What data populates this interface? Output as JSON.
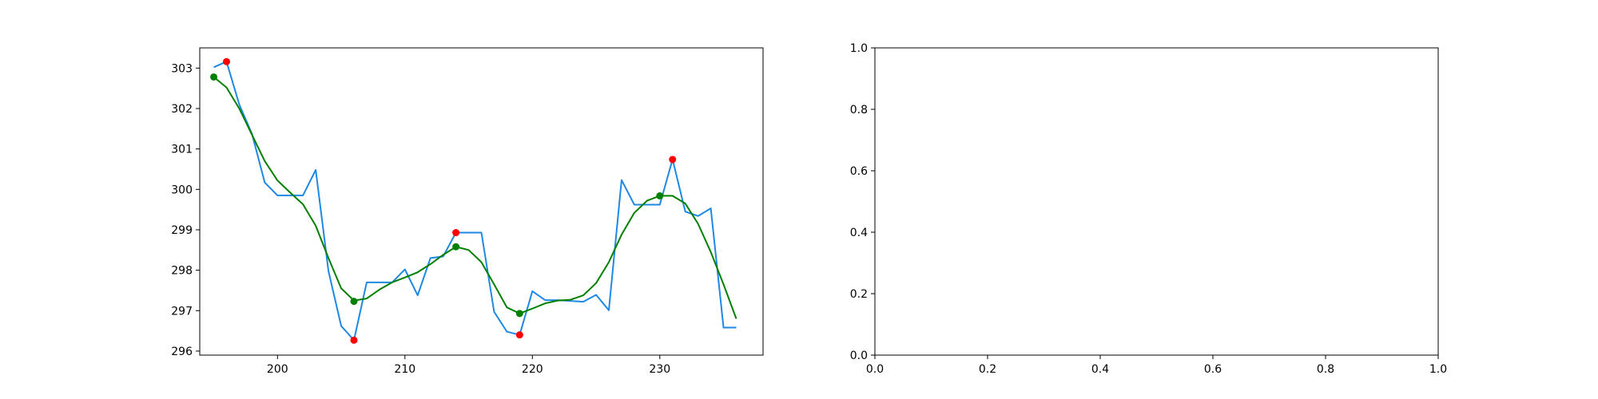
{
  "chart_data": [
    {
      "type": "line",
      "xlim": [
        193.9,
        238.1
      ],
      "ylim": [
        295.9,
        303.5
      ],
      "x_ticks": [
        200,
        210,
        220,
        230
      ],
      "y_ticks": [
        296,
        297,
        298,
        299,
        300,
        301,
        302,
        303
      ],
      "grid": false,
      "series": [
        {
          "name": "",
          "color": "#1e88e5",
          "marker": "none",
          "x": [
            195,
            196,
            197,
            198,
            199,
            200,
            201,
            202,
            203,
            204,
            205,
            206,
            207,
            208,
            209,
            210,
            211,
            212,
            213,
            214,
            215,
            216,
            217,
            218,
            219,
            220,
            221,
            222,
            223,
            224,
            225,
            226,
            227,
            228,
            229,
            230,
            231,
            232,
            233,
            234,
            235,
            236
          ],
          "y": [
            303.02,
            303.16,
            302.1,
            301.37,
            300.17,
            299.85,
            299.85,
            299.85,
            300.48,
            297.98,
            296.62,
            296.27,
            297.7,
            297.7,
            297.7,
            298.02,
            297.38,
            298.3,
            298.34,
            298.93,
            298.93,
            298.93,
            296.97,
            296.48,
            296.4,
            297.48,
            297.26,
            297.26,
            297.24,
            297.22,
            297.39,
            297.01,
            300.23,
            299.62,
            299.62,
            299.62,
            300.74,
            299.45,
            299.34,
            299.53,
            296.58,
            296.58
          ]
        },
        {
          "name": "",
          "color": "#008000",
          "marker": "none",
          "x": [
            195,
            196,
            197,
            198,
            199,
            200,
            201,
            202,
            203,
            204,
            205,
            206,
            207,
            208,
            209,
            210,
            211,
            212,
            213,
            214,
            215,
            216,
            217,
            218,
            219,
            220,
            221,
            222,
            223,
            224,
            225,
            226,
            227,
            228,
            229,
            230,
            231,
            232,
            233,
            234,
            235,
            236
          ],
          "y": [
            302.78,
            302.52,
            302.0,
            301.35,
            300.7,
            300.22,
            299.92,
            299.63,
            299.1,
            298.3,
            297.55,
            297.25,
            297.3,
            297.52,
            297.7,
            297.82,
            297.95,
            298.15,
            298.38,
            298.58,
            298.5,
            298.2,
            297.65,
            297.08,
            296.93,
            297.05,
            297.18,
            297.25,
            297.27,
            297.38,
            297.68,
            298.2,
            298.88,
            299.42,
            299.72,
            299.84,
            299.84,
            299.65,
            299.15,
            298.45,
            297.65,
            296.8
          ]
        },
        {
          "name": "",
          "color": "#ff0000",
          "marker": "circle",
          "line": false,
          "x": [
            196,
            206,
            214,
            219,
            231
          ],
          "y": [
            303.16,
            296.27,
            298.93,
            296.4,
            300.74
          ]
        },
        {
          "name": "",
          "color": "#008000",
          "marker": "circle",
          "line": false,
          "x": [
            195,
            206,
            214,
            219,
            230
          ],
          "y": [
            302.78,
            297.23,
            298.58,
            296.93,
            299.84
          ]
        }
      ]
    },
    {
      "type": "line",
      "xlim": [
        0.0,
        1.0
      ],
      "ylim": [
        0.0,
        1.0
      ],
      "x_ticks": [
        0.0,
        0.2,
        0.4,
        0.6,
        0.8,
        1.0
      ],
      "y_ticks": [
        0.0,
        0.2,
        0.4,
        0.6,
        0.8,
        1.0
      ],
      "x_tick_labels": [
        "0.0",
        "0.2",
        "0.4",
        "0.6",
        "0.8",
        "1.0"
      ],
      "y_tick_labels": [
        "0.0",
        "0.2",
        "0.4",
        "0.6",
        "0.8",
        "1.0"
      ],
      "grid": false,
      "series": []
    }
  ]
}
